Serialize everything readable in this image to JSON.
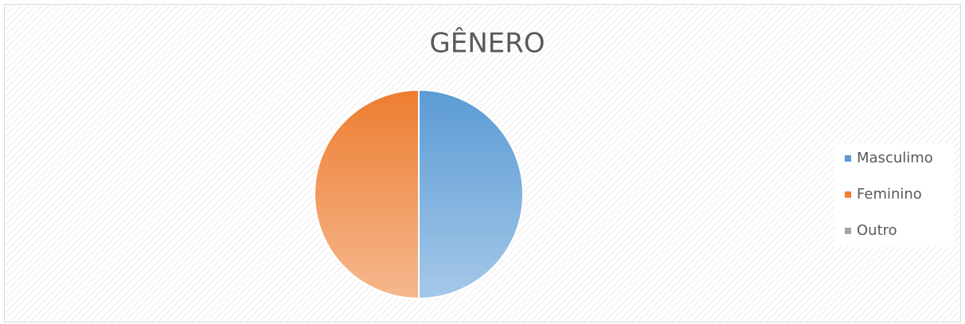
{
  "chart_data": {
    "type": "pie",
    "title": "GÊNERO",
    "series": [
      {
        "name": "Masculimo",
        "color": "#5b9bd5",
        "values": [
          50
        ]
      },
      {
        "name": "Feminino",
        "color": "#ed7d31",
        "values": [
          50
        ]
      },
      {
        "name": "Outro",
        "color": "#a5a5a5",
        "values": [
          0
        ]
      }
    ],
    "legend": "right"
  }
}
